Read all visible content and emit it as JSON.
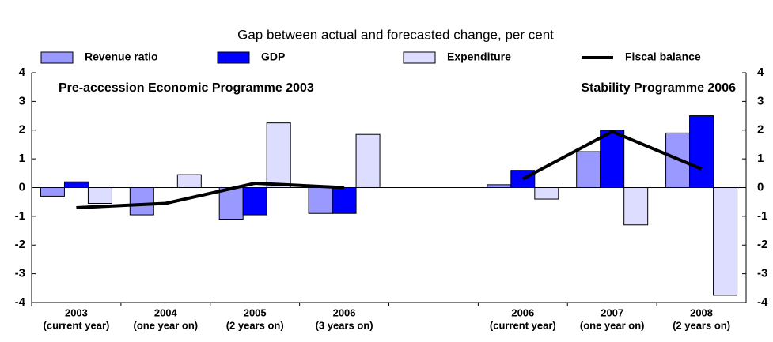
{
  "chart_data": {
    "type": "bar",
    "title": "Gap between actual and forecasted change, per cent",
    "annotations": [
      "Pre-accession Economic Programme 2003",
      "Stability Programme 2006"
    ],
    "categories": [
      "2003",
      "2004",
      "2005",
      "2006",
      null,
      "2006",
      "2007",
      "2008"
    ],
    "category_notes": [
      "(current year)",
      "(one year on)",
      "(2 years on)",
      "(3 years on)",
      null,
      "(current year)",
      "(one year on)",
      "(2 years on)"
    ],
    "series": [
      {
        "name": "Revenue ratio",
        "color": "#9999ff",
        "values": [
          -0.3,
          -0.95,
          -1.1,
          -0.9,
          null,
          0.1,
          1.25,
          1.9
        ]
      },
      {
        "name": "GDP",
        "color": "#0000ff",
        "values": [
          0.2,
          0.0,
          -0.95,
          -0.9,
          null,
          0.6,
          2.0,
          2.5
        ]
      },
      {
        "name": "Expenditure",
        "color": "#ddddff",
        "values": [
          -0.55,
          0.45,
          2.25,
          1.85,
          null,
          -0.4,
          -1.3,
          -3.75
        ]
      },
      {
        "name": "Fiscal balance",
        "color": "#000000",
        "type": "line",
        "values": [
          -0.7,
          -0.55,
          0.15,
          0.0,
          null,
          0.3,
          1.95,
          0.65
        ]
      }
    ],
    "ylim": [
      -4,
      4
    ],
    "yticks": [
      -4,
      -3,
      -2,
      -1,
      0,
      1,
      2,
      3,
      4
    ],
    "y2lim": [
      -4,
      4
    ],
    "y2ticks": [
      -4,
      -3,
      -2,
      -1,
      0,
      1,
      2,
      3,
      4
    ]
  }
}
